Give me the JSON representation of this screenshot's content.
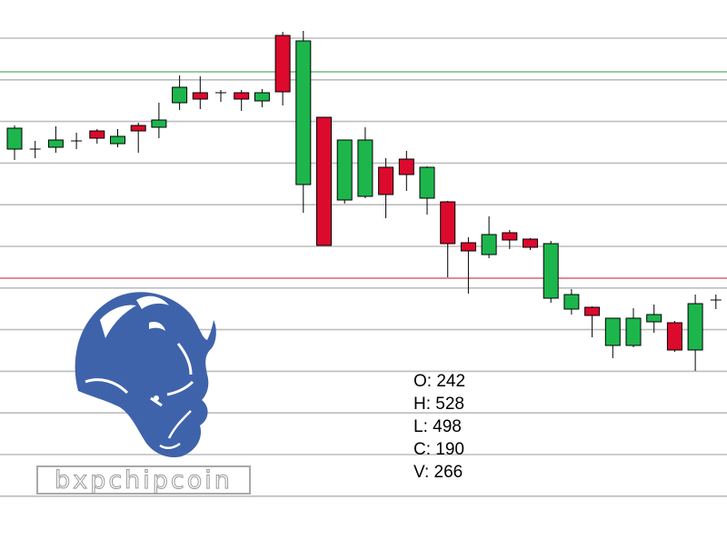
{
  "colors": {
    "up": "#1db64c",
    "down": "#dc0a2d",
    "grid": "#bdbdbd",
    "level_green": "#2e9a3a",
    "level_red": "#c0182f",
    "logo": "#3f63aa"
  },
  "watermark": {
    "text": "bxpchipcoin",
    "logo_icon": "rhino-logo-icon"
  },
  "ohlc_readout": {
    "open_label": "O: 242",
    "high_label": "H: 528",
    "low_label": "L: 498",
    "close_label": "C: 190",
    "volume_label": "V: 266"
  },
  "chart_data": {
    "type": "candlestick",
    "title": "",
    "xlabel": "",
    "ylabel": "",
    "grid": true,
    "ylim": [
      0,
      600
    ],
    "reference_lines": [
      {
        "name": "",
        "value": 521,
        "color": "green"
      },
      {
        "name": "",
        "value": 294,
        "color": "red"
      }
    ],
    "candles": [
      {
        "open": 436,
        "high": 462,
        "low": 424,
        "close": 459
      },
      {
        "open": 436,
        "high": 445,
        "low": 426,
        "close": 436
      },
      {
        "open": 438,
        "high": 461,
        "low": 432,
        "close": 446
      },
      {
        "open": 445,
        "high": 454,
        "low": 436,
        "close": 445
      },
      {
        "open": 456,
        "high": 458,
        "low": 442,
        "close": 448
      },
      {
        "open": 442,
        "high": 458,
        "low": 438,
        "close": 450
      },
      {
        "open": 462,
        "high": 465,
        "low": 432,
        "close": 456
      },
      {
        "open": 460,
        "high": 487,
        "low": 448,
        "close": 468
      },
      {
        "open": 487,
        "high": 517,
        "low": 479,
        "close": 504
      },
      {
        "open": 498,
        "high": 516,
        "low": 480,
        "close": 491
      },
      {
        "open": 498,
        "high": 501,
        "low": 488,
        "close": 498
      },
      {
        "open": 498,
        "high": 501,
        "low": 478,
        "close": 491
      },
      {
        "open": 489,
        "high": 502,
        "low": 482,
        "close": 498
      },
      {
        "open": 561,
        "high": 565,
        "low": 484,
        "close": 499
      },
      {
        "open": 397,
        "high": 566,
        "low": 366,
        "close": 555
      },
      {
        "open": 471,
        "high": 471,
        "low": 330,
        "close": 330
      },
      {
        "open": 380,
        "high": 446,
        "low": 376,
        "close": 446
      },
      {
        "open": 384,
        "high": 460,
        "low": 382,
        "close": 446
      },
      {
        "open": 416,
        "high": 426,
        "low": 360,
        "close": 386
      },
      {
        "open": 425,
        "high": 434,
        "low": 390,
        "close": 408
      },
      {
        "open": 382,
        "high": 417,
        "low": 364,
        "close": 416
      },
      {
        "open": 378,
        "high": 379,
        "low": 295,
        "close": 332
      },
      {
        "open": 333,
        "high": 339,
        "low": 277,
        "close": 324
      },
      {
        "open": 320,
        "high": 362,
        "low": 316,
        "close": 342
      },
      {
        "open": 344,
        "high": 347,
        "low": 326,
        "close": 336
      },
      {
        "open": 337,
        "high": 338,
        "low": 325,
        "close": 328
      },
      {
        "open": 272,
        "high": 335,
        "low": 267,
        "close": 332
      },
      {
        "open": 260,
        "high": 282,
        "low": 254,
        "close": 276
      },
      {
        "open": 262,
        "high": 263,
        "low": 229,
        "close": 253
      },
      {
        "open": 220,
        "high": 250,
        "low": 206,
        "close": 250
      },
      {
        "open": 220,
        "high": 261,
        "low": 218,
        "close": 250
      },
      {
        "open": 246,
        "high": 265,
        "low": 234,
        "close": 254
      },
      {
        "open": 245,
        "high": 247,
        "low": 213,
        "close": 215
      },
      {
        "open": 215,
        "high": 276,
        "low": 192,
        "close": 266
      },
      {
        "open": 270,
        "high": 276,
        "low": 260,
        "close": 270
      }
    ]
  }
}
